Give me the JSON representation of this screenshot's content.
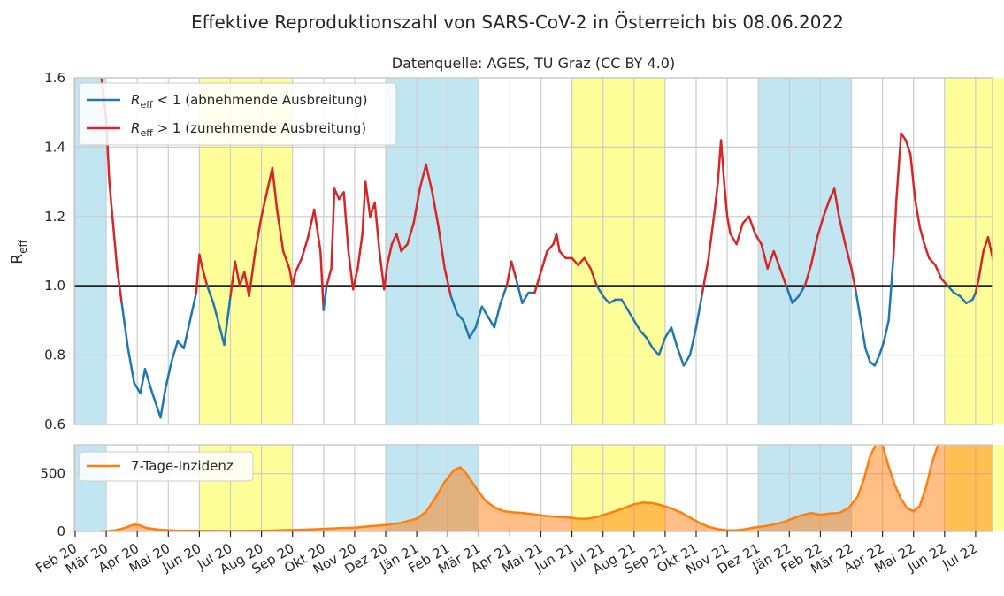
{
  "chart_data": [
    {
      "panel": "reff",
      "type": "line",
      "title": "Effektive Reproduktionszahl von SARS-CoV-2 in Österreich bis 08.06.2022",
      "subtitle": "Datenquelle: AGES, TU Graz (CC BY 4.0)",
      "ylabel_main": "R",
      "ylabel_sub": "eff",
      "ylim": [
        0.6,
        1.6
      ],
      "yticks": [
        "0.6",
        "0.8",
        "1.0",
        "1.2",
        "1.4",
        "1.6"
      ],
      "grid": true,
      "legend_position": "top-left",
      "reference_line": 1.0,
      "series": [
        {
          "name": "R_eff < 1 (abnehmende Ausbreitung)",
          "legend_main": "R",
          "legend_sub": "eff",
          "legend_rest": " < 1 (abnehmende Ausbreitung)",
          "color": "#1f77b4"
        },
        {
          "name": "R_eff > 1 (zunehmende Ausbreitung)",
          "legend_main": "R",
          "legend_sub": "eff",
          "legend_rest": " > 1 (zunehmende Ausbreitung)",
          "color": "#d62728"
        }
      ],
      "points": [
        [
          0.85,
          1.6
        ],
        [
          1.0,
          1.48
        ],
        [
          1.1,
          1.3
        ],
        [
          1.2,
          1.2
        ],
        [
          1.35,
          1.05
        ],
        [
          1.5,
          0.95
        ],
        [
          1.7,
          0.82
        ],
        [
          1.9,
          0.72
        ],
        [
          2.1,
          0.69
        ],
        [
          2.25,
          0.76
        ],
        [
          2.45,
          0.7
        ],
        [
          2.6,
          0.66
        ],
        [
          2.75,
          0.62
        ],
        [
          2.9,
          0.7
        ],
        [
          3.1,
          0.78
        ],
        [
          3.3,
          0.84
        ],
        [
          3.5,
          0.82
        ],
        [
          3.7,
          0.9
        ],
        [
          3.9,
          0.98
        ],
        [
          4.0,
          1.09
        ],
        [
          4.1,
          1.05
        ],
        [
          4.25,
          1.0
        ],
        [
          4.45,
          0.95
        ],
        [
          4.6,
          0.9
        ],
        [
          4.8,
          0.83
        ],
        [
          5.0,
          0.97
        ],
        [
          5.15,
          1.07
        ],
        [
          5.3,
          1.0
        ],
        [
          5.45,
          1.04
        ],
        [
          5.6,
          0.97
        ],
        [
          5.8,
          1.1
        ],
        [
          6.0,
          1.2
        ],
        [
          6.2,
          1.28
        ],
        [
          6.35,
          1.34
        ],
        [
          6.5,
          1.22
        ],
        [
          6.7,
          1.1
        ],
        [
          6.9,
          1.05
        ],
        [
          7.0,
          1.0
        ],
        [
          7.1,
          1.04
        ],
        [
          7.3,
          1.08
        ],
        [
          7.5,
          1.14
        ],
        [
          7.7,
          1.22
        ],
        [
          7.9,
          1.1
        ],
        [
          8.0,
          0.93
        ],
        [
          8.1,
          1.0
        ],
        [
          8.25,
          1.05
        ],
        [
          8.35,
          1.28
        ],
        [
          8.5,
          1.25
        ],
        [
          8.65,
          1.27
        ],
        [
          8.8,
          1.1
        ],
        [
          8.95,
          0.99
        ],
        [
          9.1,
          1.05
        ],
        [
          9.25,
          1.15
        ],
        [
          9.35,
          1.3
        ],
        [
          9.5,
          1.2
        ],
        [
          9.65,
          1.24
        ],
        [
          9.8,
          1.1
        ],
        [
          9.95,
          0.99
        ],
        [
          10.05,
          1.06
        ],
        [
          10.2,
          1.12
        ],
        [
          10.35,
          1.15
        ],
        [
          10.5,
          1.1
        ],
        [
          10.7,
          1.12
        ],
        [
          10.9,
          1.18
        ],
        [
          11.1,
          1.28
        ],
        [
          11.3,
          1.35
        ],
        [
          11.5,
          1.27
        ],
        [
          11.7,
          1.17
        ],
        [
          11.9,
          1.05
        ],
        [
          12.1,
          0.97
        ],
        [
          12.3,
          0.92
        ],
        [
          12.5,
          0.9
        ],
        [
          12.7,
          0.85
        ],
        [
          12.9,
          0.88
        ],
        [
          13.1,
          0.94
        ],
        [
          13.3,
          0.91
        ],
        [
          13.5,
          0.88
        ],
        [
          13.7,
          0.95
        ],
        [
          13.9,
          1.0
        ],
        [
          14.05,
          1.07
        ],
        [
          14.2,
          1.02
        ],
        [
          14.4,
          0.95
        ],
        [
          14.6,
          0.98
        ],
        [
          14.8,
          0.98
        ],
        [
          15.0,
          1.04
        ],
        [
          15.2,
          1.1
        ],
        [
          15.4,
          1.12
        ],
        [
          15.5,
          1.15
        ],
        [
          15.6,
          1.1
        ],
        [
          15.8,
          1.08
        ],
        [
          16.0,
          1.08
        ],
        [
          16.2,
          1.06
        ],
        [
          16.4,
          1.08
        ],
        [
          16.6,
          1.05
        ],
        [
          16.8,
          1.0
        ],
        [
          17.0,
          0.97
        ],
        [
          17.2,
          0.95
        ],
        [
          17.4,
          0.96
        ],
        [
          17.6,
          0.96
        ],
        [
          17.8,
          0.93
        ],
        [
          18.0,
          0.9
        ],
        [
          18.2,
          0.87
        ],
        [
          18.4,
          0.85
        ],
        [
          18.6,
          0.82
        ],
        [
          18.8,
          0.8
        ],
        [
          19.0,
          0.85
        ],
        [
          19.2,
          0.88
        ],
        [
          19.4,
          0.82
        ],
        [
          19.6,
          0.77
        ],
        [
          19.8,
          0.8
        ],
        [
          20.0,
          0.88
        ],
        [
          20.2,
          0.98
        ],
        [
          20.4,
          1.08
        ],
        [
          20.6,
          1.22
        ],
        [
          20.7,
          1.3
        ],
        [
          20.8,
          1.42
        ],
        [
          20.9,
          1.3
        ],
        [
          21.0,
          1.2
        ],
        [
          21.1,
          1.15
        ],
        [
          21.3,
          1.12
        ],
        [
          21.5,
          1.18
        ],
        [
          21.7,
          1.2
        ],
        [
          21.9,
          1.15
        ],
        [
          22.1,
          1.12
        ],
        [
          22.3,
          1.05
        ],
        [
          22.5,
          1.1
        ],
        [
          22.7,
          1.05
        ],
        [
          22.9,
          1.0
        ],
        [
          23.1,
          0.95
        ],
        [
          23.3,
          0.97
        ],
        [
          23.5,
          1.0
        ],
        [
          23.7,
          1.06
        ],
        [
          23.9,
          1.14
        ],
        [
          24.1,
          1.2
        ],
        [
          24.3,
          1.25
        ],
        [
          24.45,
          1.28
        ],
        [
          24.6,
          1.2
        ],
        [
          24.8,
          1.12
        ],
        [
          25.0,
          1.05
        ],
        [
          25.15,
          0.98
        ],
        [
          25.3,
          0.9
        ],
        [
          25.45,
          0.82
        ],
        [
          25.6,
          0.78
        ],
        [
          25.75,
          0.77
        ],
        [
          25.9,
          0.8
        ],
        [
          26.05,
          0.84
        ],
        [
          26.2,
          0.9
        ],
        [
          26.35,
          1.08
        ],
        [
          26.45,
          1.25
        ],
        [
          26.6,
          1.44
        ],
        [
          26.75,
          1.42
        ],
        [
          26.9,
          1.38
        ],
        [
          27.05,
          1.25
        ],
        [
          27.2,
          1.17
        ],
        [
          27.35,
          1.12
        ],
        [
          27.5,
          1.08
        ],
        [
          27.7,
          1.06
        ],
        [
          27.9,
          1.02
        ],
        [
          28.1,
          1.0
        ],
        [
          28.3,
          0.98
        ],
        [
          28.5,
          0.97
        ],
        [
          28.7,
          0.95
        ],
        [
          28.9,
          0.96
        ],
        [
          29.0,
          0.98
        ],
        [
          29.1,
          1.02
        ],
        [
          29.25,
          1.1
        ],
        [
          29.4,
          1.14
        ],
        [
          29.55,
          1.08
        ],
        [
          29.7,
          1.0
        ],
        [
          29.85,
          0.93
        ],
        [
          30.0,
          0.85
        ],
        [
          30.15,
          0.8
        ],
        [
          30.3,
          0.77
        ],
        [
          30.45,
          0.79
        ],
        [
          30.6,
          0.83
        ],
        [
          30.75,
          0.86
        ],
        [
          30.9,
          0.84
        ],
        [
          31.05,
          0.88
        ],
        [
          31.2,
          0.9
        ],
        [
          31.35,
          0.92
        ],
        [
          31.5,
          0.95
        ],
        [
          31.65,
          0.9
        ],
        [
          31.8,
          0.87
        ],
        [
          31.95,
          0.84
        ],
        [
          32.1,
          0.83
        ],
        [
          32.25,
          0.84
        ],
        [
          32.4,
          0.86
        ],
        [
          32.5,
          1.0
        ],
        [
          32.6,
          1.05
        ],
        [
          32.65,
          1.13
        ]
      ]
    },
    {
      "panel": "incidence",
      "type": "area",
      "ylim": [
        0,
        750
      ],
      "yticks": [
        "0",
        "500"
      ],
      "grid": true,
      "legend_position": "top-left",
      "series": [
        {
          "name": "7-Tage-Inzidenz",
          "color": "#ff7f0e"
        }
      ],
      "points": [
        [
          0.8,
          0
        ],
        [
          1.0,
          2
        ],
        [
          1.3,
          10
        ],
        [
          1.6,
          30
        ],
        [
          1.9,
          60
        ],
        [
          2.05,
          55
        ],
        [
          2.3,
          30
        ],
        [
          2.7,
          15
        ],
        [
          3.2,
          8
        ],
        [
          4.0,
          5
        ],
        [
          5.0,
          4
        ],
        [
          6.0,
          6
        ],
        [
          7.0,
          12
        ],
        [
          7.5,
          16
        ],
        [
          8.0,
          22
        ],
        [
          8.5,
          28
        ],
        [
          9.0,
          32
        ],
        [
          9.5,
          45
        ],
        [
          10.0,
          55
        ],
        [
          10.5,
          75
        ],
        [
          11.0,
          110
        ],
        [
          11.3,
          170
        ],
        [
          11.6,
          290
        ],
        [
          11.9,
          430
        ],
        [
          12.2,
          530
        ],
        [
          12.4,
          555
        ],
        [
          12.6,
          500
        ],
        [
          12.9,
          380
        ],
        [
          13.2,
          270
        ],
        [
          13.5,
          210
        ],
        [
          13.8,
          175
        ],
        [
          14.1,
          165
        ],
        [
          14.4,
          160
        ],
        [
          14.7,
          150
        ],
        [
          15.0,
          140
        ],
        [
          15.3,
          130
        ],
        [
          15.6,
          125
        ],
        [
          15.9,
          120
        ],
        [
          16.2,
          110
        ],
        [
          16.5,
          110
        ],
        [
          16.8,
          125
        ],
        [
          17.1,
          150
        ],
        [
          17.4,
          175
        ],
        [
          17.7,
          205
        ],
        [
          18.0,
          235
        ],
        [
          18.3,
          250
        ],
        [
          18.6,
          245
        ],
        [
          18.9,
          225
        ],
        [
          19.2,
          200
        ],
        [
          19.5,
          165
        ],
        [
          19.8,
          120
        ],
        [
          20.1,
          75
        ],
        [
          20.4,
          40
        ],
        [
          20.7,
          20
        ],
        [
          21.0,
          10
        ],
        [
          21.3,
          10
        ],
        [
          21.6,
          20
        ],
        [
          21.9,
          35
        ],
        [
          22.2,
          45
        ],
        [
          22.5,
          60
        ],
        [
          22.8,
          80
        ],
        [
          23.1,
          110
        ],
        [
          23.4,
          140
        ],
        [
          23.7,
          160
        ],
        [
          24.0,
          145
        ],
        [
          24.3,
          155
        ],
        [
          24.6,
          160
        ],
        [
          24.9,
          200
        ],
        [
          25.2,
          300
        ],
        [
          25.4,
          450
        ],
        [
          25.6,
          650
        ],
        [
          25.8,
          760
        ],
        [
          26.0,
          750
        ],
        [
          26.2,
          560
        ],
        [
          26.4,
          400
        ],
        [
          26.6,
          280
        ],
        [
          26.8,
          200
        ],
        [
          27.0,
          175
        ],
        [
          27.2,
          220
        ],
        [
          27.4,
          380
        ],
        [
          27.6,
          600
        ],
        [
          27.8,
          760
        ],
        [
          28.5,
          760
        ],
        [
          29.5,
          760
        ],
        [
          30.0,
          760
        ],
        [
          30.3,
          650
        ],
        [
          30.6,
          550
        ],
        [
          30.9,
          480
        ],
        [
          31.2,
          420
        ],
        [
          31.5,
          330
        ],
        [
          31.8,
          260
        ],
        [
          32.0,
          200
        ],
        [
          32.15,
          180
        ],
        [
          32.3,
          190
        ],
        [
          32.45,
          220
        ],
        [
          32.6,
          250
        ],
        [
          32.7,
          270
        ]
      ]
    }
  ],
  "x_tick_labels": [
    "Feb 20",
    "Mär 20",
    "Apr 20",
    "Mai 20",
    "Jun 20",
    "Jul 20",
    "Aug 20",
    "Sep 20",
    "Okt 20",
    "Nov 20",
    "Dez 20",
    "Jän 21",
    "Feb 21",
    "Mär 21",
    "Apr 21",
    "Mai 21",
    "Jun 21",
    "Jul 21",
    "Aug 21",
    "Sep 21",
    "Okt 21",
    "Nov 21",
    "Dez 21",
    "Jän 22",
    "Feb 22",
    "Mär 22",
    "Apr 22",
    "Mai 22",
    "Jun 22",
    "Jul 22"
  ],
  "seasons": [
    {
      "from": 0,
      "to": 1,
      "color": "#c2e5f2"
    },
    {
      "from": 4,
      "to": 7,
      "color": "#ffff99"
    },
    {
      "from": 10,
      "to": 13,
      "color": "#c2e5f2"
    },
    {
      "from": 16,
      "to": 19,
      "color": "#ffff99"
    },
    {
      "from": 22,
      "to": 25,
      "color": "#c2e5f2"
    },
    {
      "from": 28,
      "to": 31,
      "color": "#ffff99"
    }
  ]
}
